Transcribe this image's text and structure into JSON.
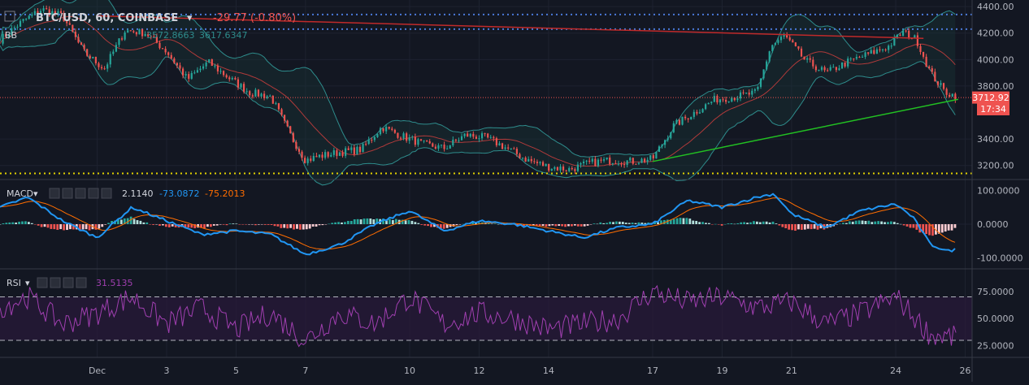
{
  "header": {
    "symbol": "BTC/USD, 60, COINBASE",
    "change": "-29.77 (-0.80%)"
  },
  "bb": {
    "label": "BB",
    "val1": "3572.8663",
    "val2": "3617.6347"
  },
  "macd": {
    "label": "MACD",
    "v1": "2.1140",
    "v2": "-73.0872",
    "v3": "-75.2013"
  },
  "rsi": {
    "label": "RSI",
    "v1": "31.5135"
  },
  "price_tag": {
    "price": "3712.92",
    "timer": "17:34"
  },
  "colors": {
    "bg": "#131722",
    "up": "#26a69a",
    "down": "#ef5350",
    "grid": "#1e2230",
    "bb_band": "#2e8c8c",
    "bb_mid": "#b03a3a",
    "macd_line": "#2196f3",
    "signal_line": "#ff6d00",
    "rsi_line": "#a03fb0",
    "rsi_fill": "#2a1a3a",
    "support": "#22c022",
    "resistance": "#c02a2a",
    "dotted_blue": "#4a78d8",
    "dotted_yellow": "#e0d000"
  },
  "chart_data": [
    {
      "type": "candlestick",
      "ylim": [
        3100,
        4450
      ],
      "y_ticks": [
        "4400.00",
        "4200.00",
        "4000.00",
        "3800.00",
        "3400.00",
        "3200.00"
      ],
      "y_tick_values": [
        4400,
        4200,
        4000,
        3800,
        3400,
        3200
      ],
      "x_tick_labels": [
        "Dec",
        "3",
        "5",
        "7",
        "10",
        "12",
        "14",
        "17",
        "19",
        "21",
        "24",
        "26"
      ],
      "x_tick_days": [
        1,
        3,
        5,
        7,
        10,
        12,
        14,
        17,
        19,
        21,
        24,
        26
      ],
      "day_range": [
        -1.8,
        26.2
      ],
      "price_path_days": [
        -1.8,
        -1.2,
        -0.6,
        0,
        0.6,
        1.2,
        1.8,
        2.4,
        3,
        3.6,
        4.2,
        4.8,
        5.4,
        6,
        6.6,
        7.0,
        7.4,
        8,
        8.6,
        9.2,
        9.8,
        10.4,
        11,
        11.6,
        12.2,
        12.8,
        13.4,
        14,
        14.6,
        15.2,
        15.8,
        16.4,
        17,
        17.6,
        18.2,
        18.8,
        19.4,
        20,
        20.4,
        20.8,
        21.4,
        22,
        22.6,
        23.2,
        23.8,
        24.2,
        24.6,
        25,
        25.4,
        25.8
      ],
      "price_path_values": [
        4150,
        4280,
        4380,
        4330,
        4060,
        3930,
        4220,
        4200,
        4060,
        3850,
        3980,
        3860,
        3750,
        3720,
        3410,
        3240,
        3270,
        3300,
        3320,
        3490,
        3420,
        3360,
        3330,
        3430,
        3410,
        3330,
        3240,
        3190,
        3170,
        3220,
        3240,
        3230,
        3250,
        3500,
        3600,
        3700,
        3720,
        3750,
        4100,
        4180,
        3990,
        3900,
        3980,
        4040,
        4100,
        4210,
        4150,
        3900,
        3760,
        3715
      ],
      "bb_dotted_levels": [
        4340,
        4230
      ],
      "support_level_dotted": 3140,
      "resistance_line": {
        "from": [
          1.0,
          4330
        ],
        "to": [
          24.8,
          4160
        ]
      },
      "support_line": {
        "from": [
          17.0,
          3230
        ],
        "to": [
          25.8,
          3700
        ]
      },
      "last_price": 3712.92
    },
    {
      "type": "macd",
      "ylim": [
        -130,
        130
      ],
      "y_ticks": [
        "100.0000",
        "0.0000",
        "-100.0000"
      ],
      "y_tick_values": [
        100,
        0,
        -100
      ],
      "macd_path_days": [
        -1.8,
        -1,
        0,
        1,
        2,
        3,
        4,
        5,
        6,
        7,
        8,
        9,
        10,
        11,
        12,
        13,
        14,
        15,
        16,
        17,
        18,
        19,
        20,
        20.5,
        21,
        22,
        23,
        24,
        24.5,
        25,
        25.5,
        25.8
      ],
      "macd_path_values": [
        50,
        80,
        10,
        -40,
        50,
        10,
        -30,
        -20,
        -30,
        -90,
        -60,
        0,
        40,
        -20,
        10,
        0,
        -20,
        -40,
        -10,
        0,
        70,
        50,
        80,
        90,
        30,
        -10,
        40,
        60,
        20,
        -60,
        -80,
        -73
      ]
    },
    {
      "type": "rsi",
      "ylim": [
        15,
        95
      ],
      "y_ticks": [
        "75.0000",
        "50.0000",
        "25.0000"
      ],
      "y_tick_values": [
        75,
        50,
        25
      ],
      "band": [
        70,
        30
      ],
      "rsi_path_days": [
        -1.8,
        -1,
        0,
        1,
        2,
        3,
        4,
        5,
        6,
        7,
        8,
        9,
        10,
        11,
        12,
        13,
        14,
        15,
        16,
        17,
        18,
        19,
        20,
        21,
        22,
        23,
        24,
        25,
        25.8
      ],
      "rsi_path_values": [
        60,
        70,
        45,
        55,
        70,
        45,
        60,
        40,
        55,
        30,
        55,
        45,
        70,
        45,
        55,
        50,
        40,
        45,
        50,
        75,
        65,
        70,
        60,
        65,
        45,
        55,
        70,
        35,
        32
      ]
    }
  ]
}
